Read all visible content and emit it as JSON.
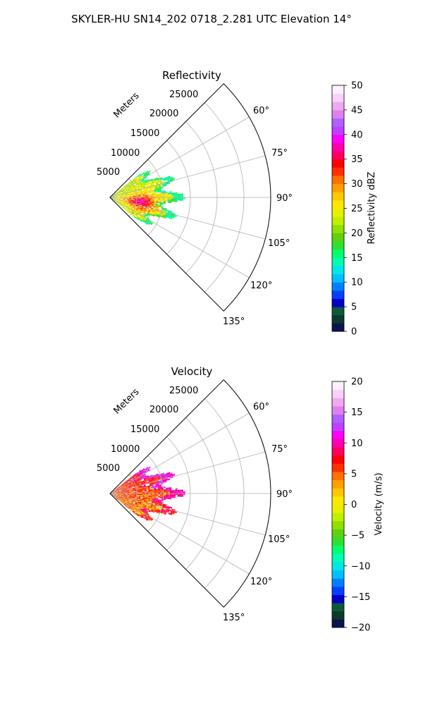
{
  "figure": {
    "title": "SKYLER-HU  SN14_202  0718_2.281 UTC Elevation 14°"
  },
  "chart_data": [
    {
      "type": "heatmap",
      "projection": "polar-sector",
      "title": "Reflectivity",
      "range_axis_label": "Meters",
      "range_ticks": [
        5000,
        10000,
        15000,
        20000,
        25000
      ],
      "range_tick_labels": [
        "5000",
        "10000",
        "15000",
        "20000",
        "25000"
      ],
      "range_max": 30000,
      "azimuth_range": [
        45,
        135
      ],
      "azimuth_ticks": [
        60,
        75,
        90,
        105,
        120,
        135
      ],
      "azimuth_tick_labels": [
        "60°",
        "75°",
        "90°",
        "105°",
        "120°",
        "135°"
      ],
      "grid": true,
      "colorbar": {
        "label": "Reflectivity dBZ",
        "range": [
          0,
          50
        ],
        "ticks": [
          0,
          5,
          10,
          15,
          20,
          25,
          30,
          35,
          40,
          45,
          50
        ],
        "tick_labels": [
          "0",
          "5",
          "10",
          "15",
          "20",
          "25",
          "30",
          "35",
          "40",
          "45",
          "50"
        ],
        "colors": [
          "#0a1450",
          "#0d3a2a",
          "#0d5a3a",
          "#0000c8",
          "#0040ff",
          "#0080ff",
          "#00c0ff",
          "#00e8e8",
          "#00ffb0",
          "#00ff70",
          "#30e030",
          "#60d010",
          "#90e000",
          "#c0f000",
          "#e8f000",
          "#ffe800",
          "#ffc800",
          "#ffa000",
          "#ff7000",
          "#ff3000",
          "#ff0000",
          "#ff0060",
          "#ff00b0",
          "#ff00ff",
          "#c040ff",
          "#b060ff",
          "#e080f0",
          "#f0a8f0",
          "#f8d0f8",
          "#fff0ff"
        ]
      },
      "echo": {
        "azimuth_span": [
          52,
          128
        ],
        "range_span": [
          0,
          14000
        ],
        "dominant_range": [
          15,
          30
        ]
      }
    },
    {
      "type": "heatmap",
      "projection": "polar-sector",
      "title": "Velocity",
      "range_axis_label": "Meters",
      "range_ticks": [
        5000,
        10000,
        15000,
        20000,
        25000
      ],
      "range_tick_labels": [
        "5000",
        "10000",
        "15000",
        "20000",
        "25000"
      ],
      "range_max": 30000,
      "azimuth_range": [
        45,
        135
      ],
      "azimuth_ticks": [
        60,
        75,
        90,
        105,
        120,
        135
      ],
      "azimuth_tick_labels": [
        "60°",
        "75°",
        "90°",
        "105°",
        "120°",
        "135°"
      ],
      "grid": true,
      "colorbar": {
        "label": "Velocity (m/s)",
        "range": [
          -20,
          20
        ],
        "ticks": [
          -20,
          -15,
          -10,
          -5,
          0,
          5,
          10,
          15,
          20
        ],
        "tick_labels": [
          "−20",
          "−15",
          "−10",
          "−5",
          "0",
          "5",
          "10",
          "15",
          "20"
        ],
        "colors": [
          "#0a1450",
          "#0d3a2a",
          "#0d5a3a",
          "#0000c8",
          "#0040ff",
          "#0080ff",
          "#00c0ff",
          "#00e8e8",
          "#00ffb0",
          "#00ff70",
          "#30e030",
          "#60d010",
          "#90e000",
          "#c0f000",
          "#e8f000",
          "#ffe800",
          "#ffc800",
          "#ffa000",
          "#ff7000",
          "#ff3000",
          "#ff0000",
          "#ff0060",
          "#ff00b0",
          "#ff00ff",
          "#c040ff",
          "#b060ff",
          "#e080f0",
          "#f0a8f0",
          "#f8d0f8",
          "#fff0ff"
        ]
      },
      "echo": {
        "azimuth_span": [
          52,
          128
        ],
        "range_span": [
          0,
          14000
        ],
        "dominant_range": [
          -3,
          12
        ]
      }
    }
  ]
}
